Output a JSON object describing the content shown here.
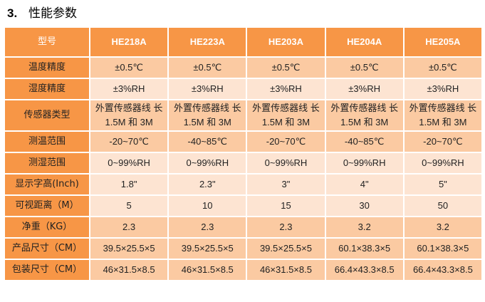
{
  "section": {
    "number": "3.",
    "title": "性能参数"
  },
  "colors": {
    "header": "#F79646",
    "row_dark": "#FBCAA2",
    "row_light": "#FDE4D2"
  },
  "table": {
    "header_label": "型号",
    "models": [
      "HE218A",
      "HE223A",
      "HE203A",
      "HE204A",
      "HE205A"
    ],
    "rows": [
      {
        "label": "温度精度",
        "values": [
          "±0.5℃",
          "±0.5℃",
          "±0.5℃",
          "±0.5℃",
          "±0.5℃"
        ]
      },
      {
        "label": "湿度精度",
        "values": [
          "±3%RH",
          "±3%RH",
          "±3%RH",
          "±3%RH",
          "±3%RH"
        ]
      },
      {
        "label": "传感器类型",
        "values": [
          "外置传感器线 长 1.5M 和 3M",
          "外置传感器线 长 1.5M 和 3M",
          "外置传感器线 长 1.5M 和 3M",
          "外置传感器线 长 1.5M 和 3M",
          "外置传感器线 长 1.5M 和 3M"
        ]
      },
      {
        "label": "测温范围",
        "values": [
          "-20~70℃",
          "-40~85℃",
          "-20~70℃",
          "-40~85℃",
          "-20~70℃"
        ]
      },
      {
        "label": "测湿范围",
        "values": [
          "0~99%RH",
          "0~99%RH",
          "0~99%RH",
          "0~99%RH",
          "0~99%RH"
        ]
      },
      {
        "label": "显示字高(Inch)",
        "values": [
          "1.8\"",
          "2.3\"",
          "3\"",
          "4\"",
          "5\""
        ]
      },
      {
        "label": "可视距离（M）",
        "values": [
          "5",
          "10",
          "15",
          "30",
          "50"
        ]
      },
      {
        "label": "净重（KG）",
        "values": [
          "2.3",
          "2.3",
          "2.3",
          "3.2",
          "3.2"
        ]
      },
      {
        "label": "产品尺寸（CM）",
        "values": [
          "39.5×25.5×5",
          "39.5×25.5×5",
          "39.5×25.5×5",
          "60.1×38.3×5",
          "60.1×38.3×5"
        ]
      },
      {
        "label": "包装尺寸（CM）",
        "values": [
          "46×31.5×8.5",
          "46×31.5×8.5",
          "46×31.5×8.5",
          "66.4×43.3×8.5",
          "66.4×43.3×8.5"
        ]
      }
    ]
  }
}
